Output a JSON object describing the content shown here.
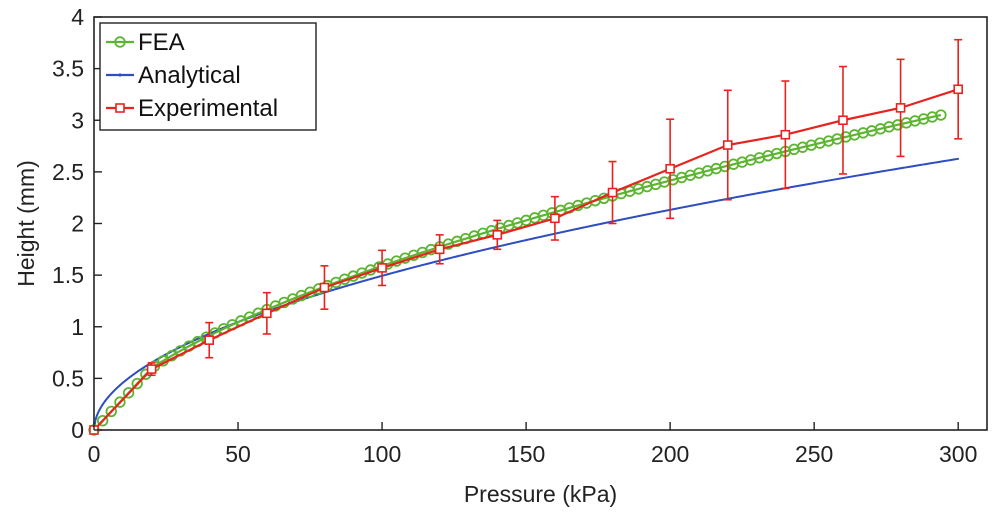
{
  "chart_data": {
    "type": "line",
    "xlabel": "Pressure (kPa)",
    "ylabel": "Height (mm)",
    "xlim": [
      0,
      310
    ],
    "ylim": [
      0,
      4
    ],
    "xticks": [
      0,
      50,
      100,
      150,
      200,
      250,
      300
    ],
    "yticks": [
      0,
      0.5,
      1,
      1.5,
      2,
      2.5,
      3,
      3.5,
      4
    ],
    "xtick_labels": [
      "0",
      "50",
      "100",
      "150",
      "200",
      "250",
      "300"
    ],
    "ytick_labels": [
      "0",
      "0.5",
      "1",
      "1.5",
      "2",
      "2.5",
      "3",
      "3.5",
      "4"
    ],
    "grid": false,
    "legend_position": "top-left",
    "series": [
      {
        "name": "FEA",
        "color": "#5cb531",
        "marker": "circle",
        "model": {
          "kind": "piecewise-power",
          "x_max": 294,
          "step": 3,
          "break_x": 20,
          "initial_slope": 0.03,
          "a": 0.6,
          "b": 0.605
        }
      },
      {
        "name": "Analytical",
        "color": "#2f4fbf",
        "marker": "dot",
        "model": {
          "kind": "power",
          "x_max": 300,
          "step": 0.5,
          "a": 0.14,
          "b": 0.514
        }
      },
      {
        "name": "Experimental",
        "color": "#e8231f",
        "marker": "square",
        "x": [
          0,
          20,
          40,
          60,
          80,
          100,
          120,
          140,
          160,
          180,
          200,
          220,
          240,
          260,
          280,
          300
        ],
        "y": [
          0,
          0.59,
          0.87,
          1.13,
          1.38,
          1.57,
          1.75,
          1.89,
          2.05,
          2.3,
          2.53,
          2.76,
          2.86,
          3.0,
          3.12,
          3.3
        ],
        "error": [
          0,
          0.06,
          0.17,
          0.2,
          0.21,
          0.17,
          0.14,
          0.14,
          0.21,
          0.3,
          0.48,
          0.53,
          0.52,
          0.52,
          0.47,
          0.48
        ]
      }
    ]
  }
}
